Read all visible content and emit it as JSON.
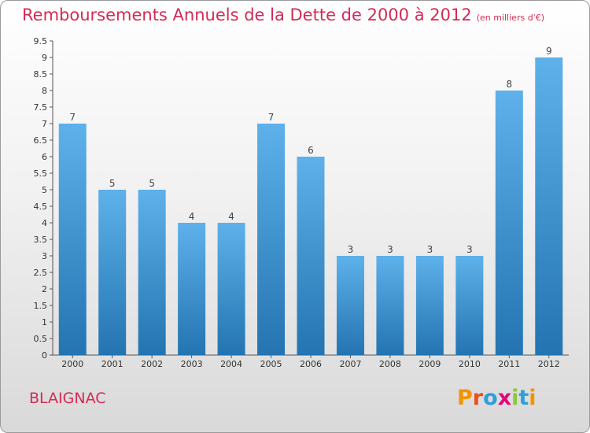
{
  "header": {
    "title": "Remboursements Annuels de la Dette de 2000 à 2012",
    "subtitle": "(en milliers d'€)"
  },
  "footer": {
    "town": "BLAIGNAC",
    "brand": "Proxiti",
    "brand_colors": [
      "#f29400",
      "#e8501e",
      "#2e9fdc",
      "#e5007e",
      "#8dc63f",
      "#2e9fdc",
      "#f29400"
    ]
  },
  "colors": {
    "bar_top": "#5eb1ea",
    "bar_bottom": "#2374b1",
    "accent": "#d42a57"
  },
  "chart_data": {
    "type": "bar",
    "categories": [
      "2000",
      "2001",
      "2002",
      "2003",
      "2004",
      "2005",
      "2006",
      "2007",
      "2008",
      "2009",
      "2010",
      "2011",
      "2012"
    ],
    "values": [
      7,
      5,
      5,
      4,
      4,
      7,
      6,
      3,
      3,
      3,
      3,
      8,
      9
    ],
    "yticks": [
      "0",
      "0.5",
      "1",
      "1.5",
      "2",
      "2.5",
      "3",
      "3.5",
      "4",
      "4.5",
      "5",
      "5.5",
      "6",
      "6.5",
      "7",
      "7.5",
      "8",
      "8.5",
      "9",
      "9.5"
    ],
    "ylim": [
      0,
      9.5
    ],
    "title": "Remboursements Annuels de la Dette de 2000 à 2012",
    "grid": false
  }
}
